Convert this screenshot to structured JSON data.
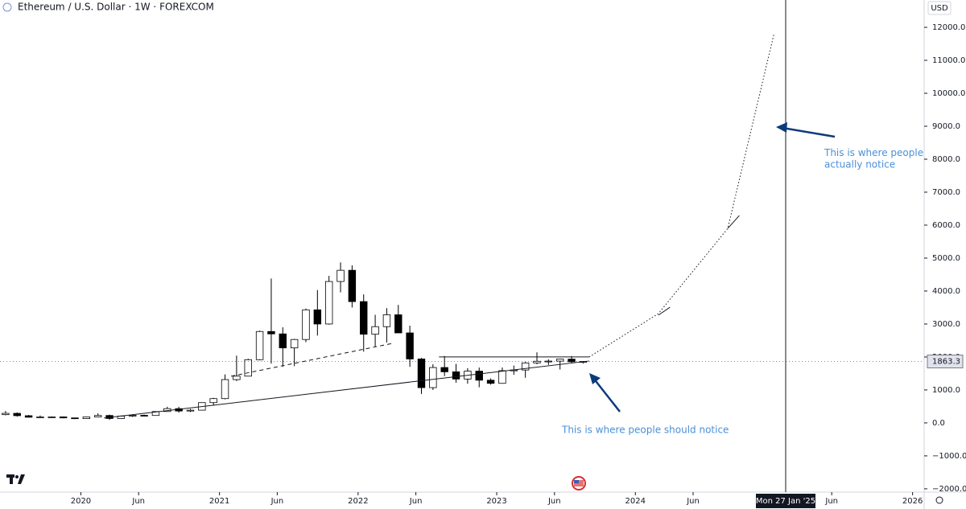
{
  "chart_data": {
    "type": "candlestick",
    "title": "Ethereum / U.S. Dollar · 1W · FOREXCOM",
    "currency": "USD",
    "up_color": "#ffffff",
    "down_color": "#000000",
    "x": [
      "2019-06",
      "2019-07",
      "2019-08",
      "2019-09",
      "2019-10",
      "2019-11",
      "2019-12",
      "2020-01",
      "2020-02",
      "2020-03",
      "2020-04",
      "2020-05",
      "2020-06",
      "2020-07",
      "2020-08",
      "2020-09",
      "2020-10",
      "2020-11",
      "2020-12",
      "2021-01",
      "2021-02",
      "2021-03",
      "2021-04",
      "2021-05",
      "2021-06",
      "2021-07",
      "2021-08",
      "2021-09",
      "2021-10",
      "2021-11",
      "2021-12",
      "2022-01",
      "2022-02",
      "2022-03",
      "2022-04",
      "2022-05",
      "2022-06",
      "2022-07",
      "2022-08",
      "2022-09",
      "2022-10",
      "2022-11",
      "2022-12",
      "2023-01",
      "2023-02",
      "2023-03",
      "2023-04",
      "2023-05",
      "2023-06",
      "2023-07",
      "2023-08"
    ],
    "open": [
      250,
      290,
      218,
      172,
      180,
      182,
      152,
      130,
      180,
      225,
      133,
      206,
      230,
      225,
      345,
      433,
      360,
      386,
      615,
      737,
      1314,
      1418,
      1918,
      2773,
      2700,
      2275,
      2530,
      3430,
      3000,
      4290,
      4630,
      3680,
      2690,
      2920,
      3280,
      2730,
      1940,
      1070,
      1680,
      1550,
      1330,
      1570,
      1295,
      1200,
      1585,
      1605,
      1820,
      1870,
      1875,
      1935,
      1855
    ],
    "high": [
      360,
      320,
      240,
      225,
      200,
      195,
      155,
      185,
      290,
      250,
      225,
      245,
      250,
      350,
      490,
      490,
      420,
      620,
      760,
      1470,
      2040,
      1950,
      2800,
      4380,
      2900,
      2550,
      3470,
      4030,
      4460,
      4870,
      4780,
      3900,
      3280,
      3480,
      3580,
      2950,
      1970,
      1780,
      2030,
      1790,
      1660,
      1680,
      1350,
      1680,
      1740,
      1850,
      2140,
      1930,
      1930,
      2030,
      1870
    ],
    "low": [
      230,
      190,
      160,
      150,
      150,
      140,
      115,
      125,
      180,
      90,
      130,
      180,
      210,
      220,
      340,
      310,
      330,
      380,
      530,
      715,
      1270,
      1420,
      1900,
      1800,
      1700,
      1720,
      2450,
      2650,
      2980,
      3960,
      3500,
      2160,
      2300,
      2440,
      2730,
      1700,
      880,
      1000,
      1420,
      1220,
      1190,
      1080,
      1160,
      1190,
      1460,
      1370,
      1780,
      1760,
      1620,
      1820,
      1800
    ],
    "close": [
      290,
      218,
      172,
      180,
      182,
      152,
      130,
      180,
      225,
      133,
      206,
      230,
      225,
      345,
      433,
      360,
      386,
      615,
      737,
      1314,
      1418,
      1918,
      2773,
      2700,
      2275,
      2530,
      3430,
      3000,
      4290,
      4630,
      3680,
      2690,
      2920,
      3280,
      2730,
      1940,
      1070,
      1680,
      1550,
      1330,
      1570,
      1295,
      1200,
      1585,
      1605,
      1820,
      1870,
      1875,
      1935,
      1855,
      1863.3
    ],
    "last_price": 1863.3,
    "xlim": [
      "2019-06",
      "2026-02"
    ],
    "ylim": [
      -2100,
      12830
    ],
    "xticks": [
      {
        "value": "2020-01",
        "label": "2020"
      },
      {
        "value": "2020-06",
        "label": "Jun"
      },
      {
        "value": "2021-01",
        "label": "2021"
      },
      {
        "value": "2021-06",
        "label": "Jun"
      },
      {
        "value": "2022-01",
        "label": "2022"
      },
      {
        "value": "2022-06",
        "label": "Jun"
      },
      {
        "value": "2023-01",
        "label": "2023"
      },
      {
        "value": "2023-06",
        "label": "Jun"
      },
      {
        "value": "2024-01",
        "label": "2024"
      },
      {
        "value": "2024-06",
        "label": "Jun"
      },
      {
        "value": "2025-06",
        "label": "Jun"
      },
      {
        "value": "2026-01",
        "label": "2026"
      }
    ],
    "yticks": [
      {
        "value": -2000,
        "label": "−2000.0"
      },
      {
        "value": -1000,
        "label": "−1000.0"
      },
      {
        "value": 0,
        "label": "0.0"
      },
      {
        "value": 1000,
        "label": "1000.0"
      },
      {
        "value": 2000,
        "label": "2000.0"
      },
      {
        "value": 3000,
        "label": "3000.0"
      },
      {
        "value": 4000,
        "label": "4000.0"
      },
      {
        "value": 5000,
        "label": "5000.0"
      },
      {
        "value": 6000,
        "label": "6000.0"
      },
      {
        "value": 7000,
        "label": "7000.0"
      },
      {
        "value": 8000,
        "label": "8000.0"
      },
      {
        "value": 9000,
        "label": "9000.0"
      },
      {
        "value": 10000,
        "label": "10000.0"
      },
      {
        "value": 11000,
        "label": "11000.0"
      },
      {
        "value": 12000,
        "label": "12000.0"
      }
    ],
    "crosshair_label": "Mon 27 Jan '25",
    "annotations": [
      "This is where people should notice",
      "This is where people\nactually notice"
    ],
    "drawings": [
      {
        "style": "solid",
        "x": [
          "2020-03",
          "2023-09"
        ],
        "y": [
          146,
          1878
        ]
      },
      {
        "style": "dashed",
        "x": [
          "2021-02",
          "2022-04"
        ],
        "y": [
          1415,
          2415
        ]
      },
      {
        "style": "solid",
        "x": [
          "2022-08",
          "2023-09"
        ],
        "y": [
          2000,
          2000
        ]
      },
      {
        "style": "dotted",
        "x": [
          "2023-09",
          "2024-03",
          "2024-09",
          "2025-01"
        ],
        "y": [
          2000,
          3317,
          5900,
          11800
        ]
      },
      {
        "style": "solid",
        "x": [
          "2024-03",
          "2024-04"
        ],
        "y": [
          3270,
          3510
        ]
      },
      {
        "style": "solid",
        "x": [
          "2024-09",
          "2024-10"
        ],
        "y": [
          5900,
          6290
        ]
      }
    ]
  }
}
